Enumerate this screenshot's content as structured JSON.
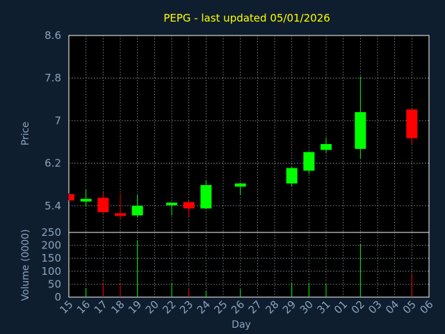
{
  "chart_data": {
    "type": "candlestick",
    "title": "PEPG - last updated 05/01/2026",
    "xlabel": "Day",
    "x_ticks": [
      "15",
      "16",
      "17",
      "18",
      "19",
      "20",
      "22",
      "23",
      "24",
      "25",
      "26",
      "27",
      "28",
      "29",
      "30",
      "31",
      "01",
      "02",
      "03",
      "04",
      "05",
      "06"
    ],
    "price_panel": {
      "ylabel": "Price",
      "ylim": [
        4.9,
        8.6
      ],
      "y_ticks": [
        "5.4",
        "6.2",
        "7",
        "7.8",
        "8.6"
      ],
      "candles": [
        {
          "day": "15",
          "open": 5.62,
          "high": 5.63,
          "low": 5.5,
          "close": 5.5
        },
        {
          "day": "16",
          "open": 5.48,
          "high": 5.7,
          "low": 5.38,
          "close": 5.53
        },
        {
          "day": "17",
          "open": 5.55,
          "high": 5.65,
          "low": 5.24,
          "close": 5.28
        },
        {
          "day": "18",
          "open": 5.26,
          "high": 5.63,
          "low": 5.13,
          "close": 5.21
        },
        {
          "day": "19",
          "open": 5.22,
          "high": 5.6,
          "low": 5.18,
          "close": 5.4
        },
        {
          "day": "22",
          "open": 5.41,
          "high": 5.46,
          "low": 5.22,
          "close": 5.46
        },
        {
          "day": "23",
          "open": 5.47,
          "high": 5.49,
          "low": 5.18,
          "close": 5.35
        },
        {
          "day": "24",
          "open": 5.35,
          "high": 5.88,
          "low": 5.35,
          "close": 5.79
        },
        {
          "day": "26",
          "open": 5.76,
          "high": 5.83,
          "low": 5.6,
          "close": 5.82
        },
        {
          "day": "29",
          "open": 5.82,
          "high": 6.13,
          "low": 5.76,
          "close": 6.11
        },
        {
          "day": "30",
          "open": 6.06,
          "high": 6.42,
          "low": 6.0,
          "close": 6.41
        },
        {
          "day": "31",
          "open": 6.45,
          "high": 6.68,
          "low": 6.4,
          "close": 6.56
        },
        {
          "day": "02",
          "open": 6.47,
          "high": 7.83,
          "low": 6.28,
          "close": 7.16
        },
        {
          "day": "05",
          "open": 7.21,
          "high": 7.22,
          "low": 6.55,
          "close": 6.67
        }
      ]
    },
    "volume_panel": {
      "ylabel": "Volume (0000)",
      "ylim": [
        0,
        250
      ],
      "y_ticks": [
        "0",
        "50",
        "100",
        "150",
        "200",
        "250"
      ],
      "bars": [
        {
          "day": "15",
          "volume": 0,
          "direction": "down"
        },
        {
          "day": "16",
          "volume": 35,
          "direction": "up"
        },
        {
          "day": "17",
          "volume": 55,
          "direction": "down"
        },
        {
          "day": "18",
          "volume": 55,
          "direction": "down"
        },
        {
          "day": "19",
          "volume": 220,
          "direction": "up"
        },
        {
          "day": "22",
          "volume": 55,
          "direction": "up"
        },
        {
          "day": "23",
          "volume": 30,
          "direction": "down"
        },
        {
          "day": "24",
          "volume": 25,
          "direction": "up"
        },
        {
          "day": "26",
          "volume": 30,
          "direction": "up"
        },
        {
          "day": "29",
          "volume": 55,
          "direction": "up"
        },
        {
          "day": "30",
          "volume": 55,
          "direction": "up"
        },
        {
          "day": "31",
          "volume": 50,
          "direction": "up"
        },
        {
          "day": "02",
          "volume": 205,
          "direction": "up"
        },
        {
          "day": "05",
          "volume": 90,
          "direction": "down"
        }
      ]
    },
    "colors": {
      "background": "#0f1e2e",
      "plot_background": "#000000",
      "up": "#00ff00",
      "down": "#ff0000",
      "title": "#ffff00",
      "label": "#8ba3be",
      "grid": "#9aa6b2"
    },
    "grid": true
  }
}
